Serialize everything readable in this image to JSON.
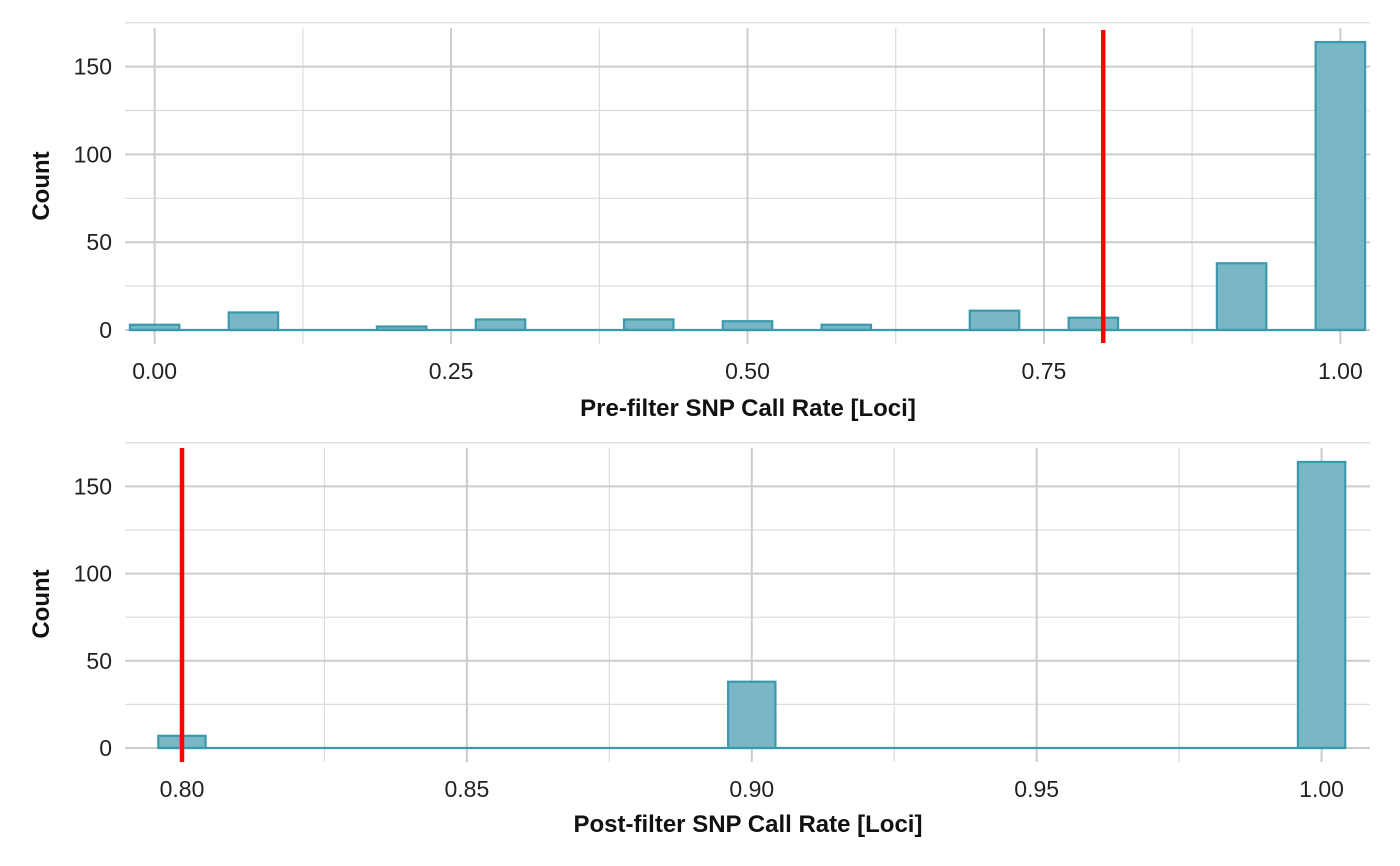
{
  "colors": {
    "bar_fill": "#79b7c6",
    "bar_stroke": "#3a9aac",
    "threshold": "#ff0000",
    "grid": "#cccccc"
  },
  "chart_data": [
    {
      "type": "bar",
      "title": "",
      "xlabel": "Pre-filter SNP Call Rate [Loci]",
      "ylabel": "Count",
      "xlim": [
        -0.025,
        1.025
      ],
      "ylim": [
        0,
        172
      ],
      "x_ticks": [
        0,
        0.25,
        0.5,
        0.75,
        1
      ],
      "x_tick_labels": [
        "0.00",
        "0.25",
        "0.50",
        "0.75",
        "1.00"
      ],
      "y_ticks": [
        0,
        50,
        100,
        150
      ],
      "y_tick_labels": [
        "0",
        "50",
        "100",
        "150"
      ],
      "grid": true,
      "bin_width": 0.0417,
      "bins": [
        {
          "x": 0.0,
          "count": 3
        },
        {
          "x": 0.0833,
          "count": 10
        },
        {
          "x": 0.2083,
          "count": 2
        },
        {
          "x": 0.2917,
          "count": 6
        },
        {
          "x": 0.4167,
          "count": 6
        },
        {
          "x": 0.5,
          "count": 5
        },
        {
          "x": 0.5833,
          "count": 3
        },
        {
          "x": 0.7083,
          "count": 11
        },
        {
          "x": 0.7917,
          "count": 7
        },
        {
          "x": 0.9167,
          "count": 38
        },
        {
          "x": 1.0,
          "count": 164
        }
      ],
      "threshold": 0.8
    },
    {
      "type": "bar",
      "title": "",
      "xlabel": "Post-filter SNP Call Rate [Loci]",
      "ylabel": "Count",
      "xlim": [
        0.79,
        1.0085
      ],
      "ylim": [
        0,
        172
      ],
      "x_ticks": [
        0.8,
        0.85,
        0.9,
        0.95,
        1
      ],
      "x_tick_labels": [
        "0.80",
        "0.85",
        "0.90",
        "0.95",
        "1.00"
      ],
      "y_ticks": [
        0,
        50,
        100,
        150
      ],
      "y_tick_labels": [
        "0",
        "50",
        "100",
        "150"
      ],
      "grid": true,
      "bin_width": 0.0083,
      "bins": [
        {
          "x": 0.8,
          "count": 7
        },
        {
          "x": 0.9,
          "count": 38
        },
        {
          "x": 1.0,
          "count": 164
        }
      ],
      "threshold": 0.8
    }
  ]
}
